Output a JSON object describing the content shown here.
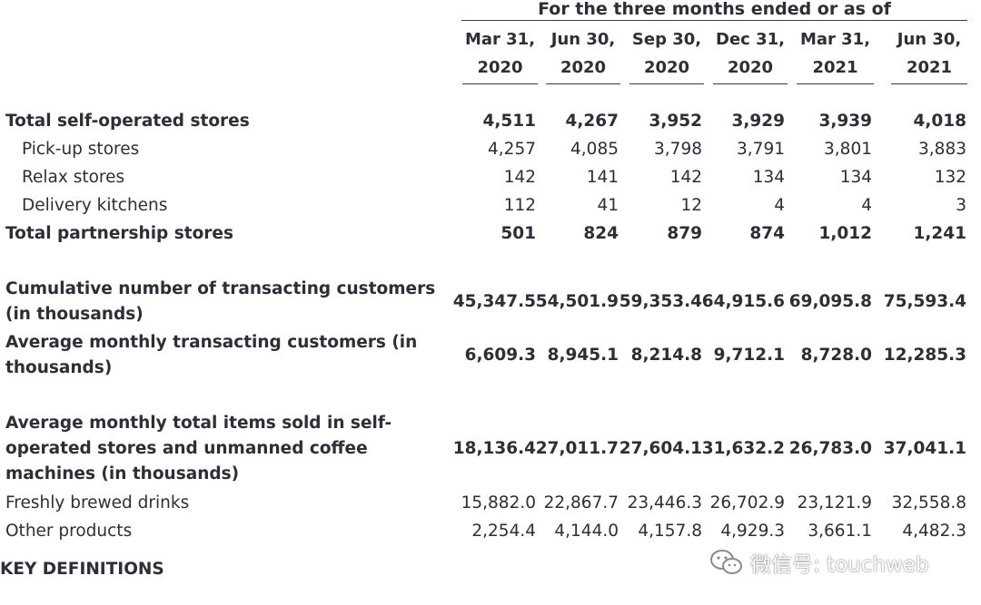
{
  "header": {
    "group_title": "For the three months ended or as of",
    "columns": [
      {
        "line1": "Mar 31,",
        "line2": "2020"
      },
      {
        "line1": "Jun 30,",
        "line2": "2020"
      },
      {
        "line1": "Sep 30,",
        "line2": "2020"
      },
      {
        "line1": "Dec 31,",
        "line2": "2020"
      },
      {
        "line1": "Mar 31,",
        "line2": "2021"
      },
      {
        "line1": "Jun 30,",
        "line2": "2021"
      }
    ]
  },
  "rows": [
    {
      "label": [
        "Total self-operated stores"
      ],
      "bold": true,
      "indent": false,
      "values": [
        "4,511",
        "4,267",
        "3,952",
        "3,929",
        "3,939",
        "4,018"
      ]
    },
    {
      "label": [
        "Pick-up stores"
      ],
      "bold": false,
      "indent": true,
      "values": [
        "4,257",
        "4,085",
        "3,798",
        "3,791",
        "3,801",
        "3,883"
      ]
    },
    {
      "label": [
        "Relax stores"
      ],
      "bold": false,
      "indent": true,
      "values": [
        "142",
        "141",
        "142",
        "134",
        "134",
        "132"
      ]
    },
    {
      "label": [
        "Delivery kitchens"
      ],
      "bold": false,
      "indent": true,
      "values": [
        "112",
        "41",
        "12",
        "4",
        "4",
        "3"
      ]
    },
    {
      "label": [
        "Total partnership stores"
      ],
      "bold": true,
      "indent": false,
      "values": [
        "501",
        "824",
        "879",
        "874",
        "1,012",
        "1,241"
      ]
    },
    {
      "label": [
        "Cumulative number of transacting customers",
        "(in thousands)"
      ],
      "bold": true,
      "indent": false,
      "values": [
        "45,347.5",
        "54,501.9",
        "59,353.4",
        "64,915.6",
        "69,095.8",
        "75,593.4"
      ]
    },
    {
      "label": [
        "Average monthly transacting customers (in",
        "thousands)"
      ],
      "bold": true,
      "indent": false,
      "values": [
        "6,609.3",
        "8,945.1",
        "8,214.8",
        "9,712.1",
        "8,728.0",
        "12,285.3"
      ]
    },
    {
      "label": [
        "Average monthly total items sold in self-",
        "operated stores and unmanned coffee",
        "machines (in thousands)"
      ],
      "bold": true,
      "indent": false,
      "values": [
        "18,136.4",
        "27,011.7",
        "27,604.1",
        "31,632.2",
        "26,783.0",
        "37,041.1"
      ]
    },
    {
      "label": [
        "Freshly brewed drinks"
      ],
      "bold": false,
      "indent": false,
      "values": [
        "15,882.0",
        "22,867.7",
        "23,446.3",
        "26,702.9",
        "23,121.9",
        "32,558.8"
      ]
    },
    {
      "label": [
        "Other products"
      ],
      "bold": false,
      "indent": false,
      "values": [
        "2,254.4",
        "4,144.0",
        "4,157.8",
        "4,929.3",
        "3,661.1",
        "4,482.3"
      ]
    }
  ],
  "section_heading": "KEY DEFINITIONS",
  "watermark": {
    "text": "微信号: touchweb",
    "icon": "wechat-icon"
  }
}
